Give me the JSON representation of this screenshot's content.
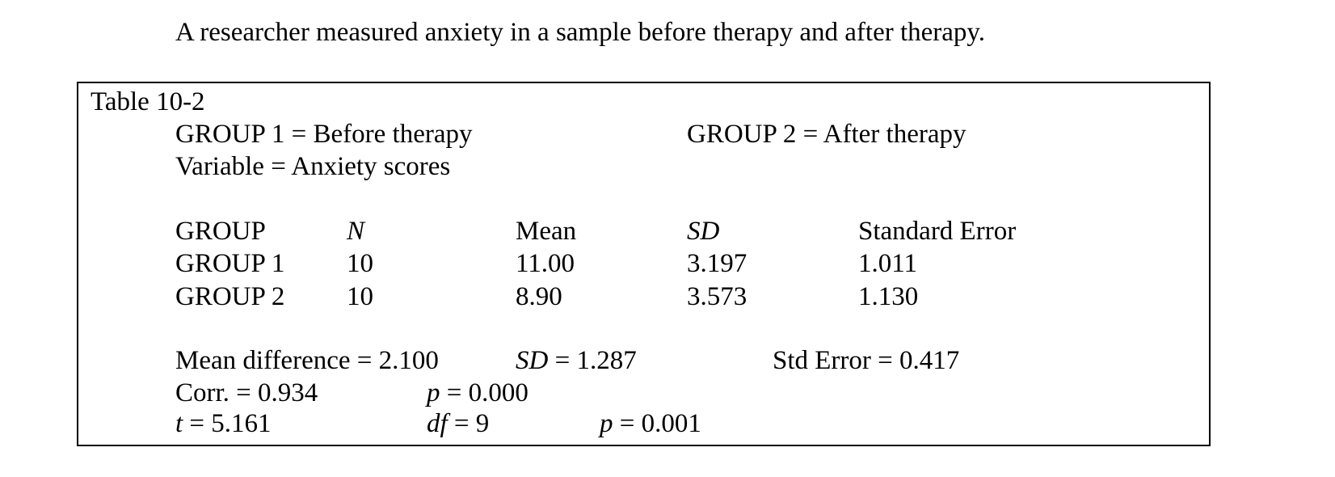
{
  "intro": "A researcher measured anxiety in a sample before therapy and after therapy.",
  "table": {
    "title": "Table 10-2",
    "group1_def": "GROUP 1 = Before therapy",
    "group2_def": "GROUP 2 = After therapy",
    "variable": "Variable = Anxiety scores",
    "headers": {
      "group": "GROUP",
      "n": "N",
      "mean": "Mean",
      "sd": "SD",
      "se": "Standard Error"
    },
    "rows": [
      {
        "group": "GROUP 1",
        "n": "10",
        "mean": "11.00",
        "sd": "3.197",
        "se": "1.011"
      },
      {
        "group": "GROUP 2",
        "n": "10",
        "mean": "8.90",
        "sd": "3.573",
        "se": "1.130"
      }
    ],
    "stats": {
      "mean_diff": "Mean difference = 2.100",
      "sd_label": "SD",
      "sd_value": " = 1.287",
      "std_error": "Std Error = 0.417",
      "corr": "Corr. = 0.934",
      "p1_label": "p",
      "p1_value": " = 0.000",
      "t_label": "t",
      "t_value": " = 5.161",
      "df_label": "df",
      "df_value": " = 9",
      "p2_label": "p",
      "p2_value": " = 0.001"
    }
  }
}
